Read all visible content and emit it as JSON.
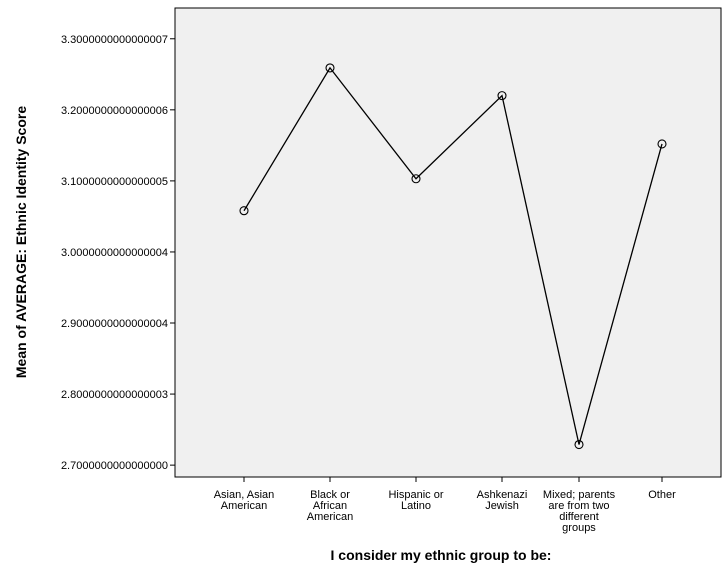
{
  "chart_data": {
    "type": "line",
    "xlabel": "I consider my ethnic group to be:",
    "ylabel": "Mean of AVERAGE: Ethnic Identity Score",
    "categories": [
      [
        "Asian, Asian",
        "American"
      ],
      [
        "Black or",
        "African",
        "American"
      ],
      [
        "Hispanic or",
        "Latino"
      ],
      [
        "Ashkenazi",
        "Jewish"
      ],
      [
        "Mixed; parents",
        "are from two",
        "different",
        "groups"
      ],
      [
        "Other"
      ]
    ],
    "values": [
      3.058,
      3.259,
      3.103,
      3.22,
      2.729,
      3.152
    ],
    "ylim": [
      2.6833,
      3.3433
    ],
    "yticks": [
      {
        "value": 2.7,
        "label": "2.7000000000000000"
      },
      {
        "value": 2.8,
        "label": "2.8000000000000003"
      },
      {
        "value": 2.9,
        "label": "2.9000000000000004"
      },
      {
        "value": 3.0,
        "label": "3.0000000000000004"
      },
      {
        "value": 3.1,
        "label": "3.1000000000000005"
      },
      {
        "value": 3.2,
        "label": "3.2000000000000006"
      },
      {
        "value": 3.3,
        "label": "3.3000000000000007"
      }
    ],
    "grid": false,
    "colors": {
      "plot_background": "#f0f0f0",
      "line": "#000000",
      "marker": "#000000"
    }
  }
}
